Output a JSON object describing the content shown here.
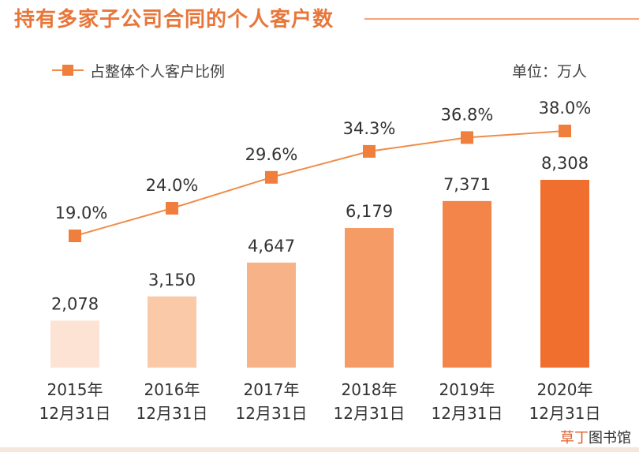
{
  "title": "持有多家子公司合同的个人客户数",
  "unit": "单位：万人",
  "watermark": {
    "accent": "草丁",
    "rest": "图书馆"
  },
  "colors": {
    "title": "#E8763A",
    "line": "#F08C4A",
    "marker": "#F07E3C",
    "bars": [
      "#FCE3D3",
      "#F9C9A8",
      "#F7B287",
      "#F59B66",
      "#F3844A",
      "#F06F2E"
    ]
  },
  "chart_data": {
    "type": "bar",
    "categories": [
      "2015年\n12月31日",
      "2016年\n12月31日",
      "2017年\n12月31日",
      "2018年\n12月31日",
      "2019年\n12月31日",
      "2020年\n12月31日"
    ],
    "series": [
      {
        "type": "bar",
        "values": [
          2078,
          3150,
          4647,
          6179,
          7371,
          8308
        ],
        "labels": [
          "2,078",
          "3,150",
          "4,647",
          "6,179",
          "7,371",
          "8,308"
        ]
      },
      {
        "type": "line",
        "name": "占整体个人客户比例",
        "values": [
          19.0,
          24.0,
          29.6,
          34.3,
          36.8,
          38.0
        ],
        "labels": [
          "19.0%",
          "24.0%",
          "29.6%",
          "34.3%",
          "36.8%",
          "38.0%"
        ]
      }
    ],
    "bar_ylim": [
      0,
      8308
    ],
    "line_ylim": [
      19.0,
      38.0
    ],
    "legend": "top-left",
    "grid": false
  }
}
